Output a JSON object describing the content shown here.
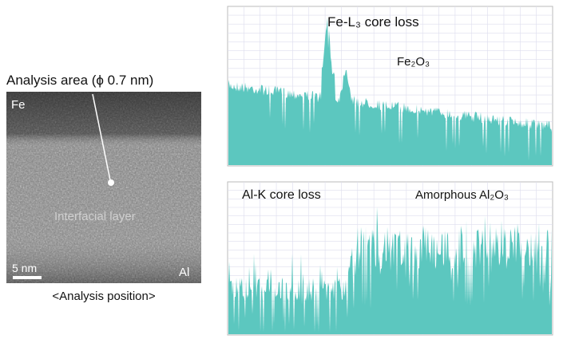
{
  "image": {
    "caption": "Analysis area (ϕ 0.7 nm)",
    "label_top": "Fe",
    "label_mid": "Interfacial layer",
    "scale_bar": "5 nm",
    "label_bottom": "Al",
    "footer": "<Analysis position>"
  },
  "spectra": [
    {
      "title": "Fe-L₃ core loss",
      "label": "Fe₂O₃"
    },
    {
      "title": "Al-K core loss",
      "label": "Amorphous Al₂O₃"
    }
  ]
}
